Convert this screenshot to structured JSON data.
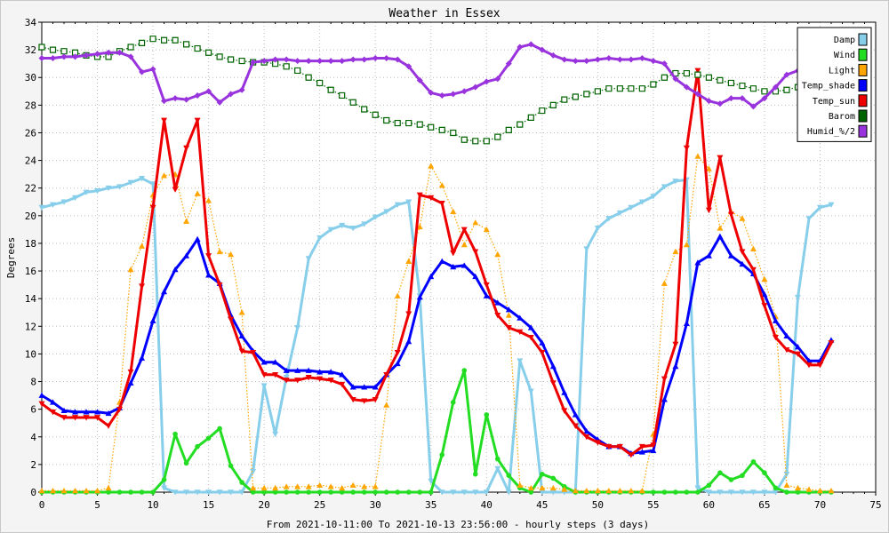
{
  "chart_data": {
    "type": "line",
    "title": "Weather in Essex",
    "xlabel": "From 2021-10-11:00 To 2021-10-13 23:56:00 - hourly steps (3 days)",
    "ylabel": "Degrees",
    "xlim": [
      0,
      75
    ],
    "ylim": [
      0,
      34
    ],
    "xticks": [
      "0",
      "5",
      "10",
      "15",
      "20",
      "25",
      "30",
      "35",
      "40",
      "45",
      "50",
      "55",
      "60",
      "65",
      "70",
      "75"
    ],
    "yticks": [
      "0",
      "2",
      "4",
      "6",
      "8",
      "10",
      "12",
      "14",
      "16",
      "18",
      "20",
      "22",
      "24",
      "26",
      "28",
      "30",
      "32",
      "34"
    ],
    "grid": true,
    "legend_position": "top-right",
    "series": [
      {
        "name": "Damp",
        "color": "#87ceeb",
        "marker": "triangle-down",
        "values": [
          20.6,
          20.8,
          21.0,
          21.3,
          21.7,
          21.8,
          22.0,
          22.1,
          22.4,
          22.7,
          22.3,
          0.3,
          0.0,
          0.0,
          0.0,
          0.0,
          0.0,
          0.0,
          0.0,
          1.5,
          7.7,
          4.2,
          8.3,
          11.9,
          16.9,
          18.4,
          19.0,
          19.3,
          19.1,
          19.4,
          19.9,
          20.3,
          20.8,
          21.0,
          14.2,
          0.8,
          0.0,
          0.0,
          0.0,
          0.0,
          0.0,
          1.7,
          0.0,
          9.5,
          7.3,
          0.0,
          0.0,
          0.0,
          0.0,
          17.6,
          19.1,
          19.8,
          20.2,
          20.6,
          21.0,
          21.4,
          22.1,
          22.5,
          22.6,
          0.3,
          0.0,
          0.0,
          0.0,
          0.0,
          0.0,
          0.0,
          0.0,
          1.3,
          14.1,
          19.8,
          20.6,
          20.8
        ]
      },
      {
        "name": "Wind",
        "color": "#22dd22",
        "marker": "circle",
        "values": [
          0,
          0,
          0,
          0,
          0,
          0,
          0,
          0,
          0,
          0,
          0,
          0.9,
          4.2,
          2.1,
          3.3,
          3.9,
          4.6,
          1.9,
          0.7,
          0,
          0,
          0,
          0,
          0,
          0,
          0,
          0,
          0,
          0,
          0,
          0,
          0,
          0,
          0,
          0,
          0,
          2.7,
          6.5,
          8.8,
          1.3,
          5.6,
          2.4,
          1.2,
          0.3,
          0,
          1.3,
          1.0,
          0.4,
          0,
          0,
          0,
          0,
          0,
          0,
          0,
          0,
          0,
          0,
          0,
          0,
          0.5,
          1.4,
          0.9,
          1.2,
          2.2,
          1.4,
          0.3,
          0,
          0,
          0,
          0,
          0
        ]
      },
      {
        "name": "Light",
        "color": "#ffa500",
        "marker": "triangle-up",
        "dotted": true,
        "values": [
          0.1,
          0.1,
          0.1,
          0.1,
          0.1,
          0.1,
          0.3,
          6.5,
          16.1,
          17.8,
          21.5,
          22.9,
          23.0,
          19.6,
          21.6,
          21.1,
          17.4,
          17.2,
          13.0,
          0.3,
          0.3,
          0.3,
          0.4,
          0.4,
          0.4,
          0.5,
          0.4,
          0.3,
          0.5,
          0.4,
          0.4,
          6.3,
          14.2,
          16.7,
          19.2,
          23.6,
          22.2,
          20.3,
          17.9,
          19.5,
          19.0,
          17.2,
          12.8,
          0.5,
          0.3,
          0.3,
          0.3,
          0.2,
          0.1,
          0.1,
          0.1,
          0.1,
          0.1,
          0.1,
          0.1,
          4.2,
          15.1,
          17.4,
          17.9,
          24.3,
          23.4,
          19.1,
          20.3,
          19.8,
          17.6,
          15.4,
          12.7,
          0.5,
          0.3,
          0.2,
          0.1,
          0.1
        ]
      },
      {
        "name": "Temp_shade",
        "color": "#0000ff",
        "marker": "triangle-up",
        "values": [
          7.0,
          6.5,
          5.9,
          5.8,
          5.8,
          5.8,
          5.7,
          6.1,
          7.9,
          9.7,
          12.4,
          14.5,
          16.1,
          17.1,
          18.3,
          15.7,
          15.1,
          12.8,
          11.3,
          10.2,
          9.4,
          9.4,
          8.8,
          8.8,
          8.8,
          8.7,
          8.7,
          8.5,
          7.6,
          7.6,
          7.6,
          8.5,
          9.3,
          10.9,
          14.1,
          15.6,
          16.7,
          16.3,
          16.4,
          15.6,
          14.2,
          13.7,
          13.2,
          12.6,
          11.9,
          10.8,
          9.1,
          7.2,
          5.6,
          4.4,
          3.8,
          3.3,
          3.3,
          2.8,
          2.9,
          3.0,
          6.7,
          9.1,
          12.2,
          16.6,
          17.1,
          18.5,
          17.1,
          16.5,
          15.8,
          14.3,
          12.4,
          11.3,
          10.5,
          9.5,
          9.5,
          11.0
        ]
      },
      {
        "name": "Temp_sun",
        "color": "#ee0000",
        "marker": "triangle-down",
        "values": [
          6.4,
          5.8,
          5.4,
          5.4,
          5.4,
          5.4,
          4.8,
          6.0,
          8.7,
          14.9,
          20.6,
          26.9,
          21.9,
          24.9,
          26.9,
          17.1,
          15.0,
          12.5,
          10.2,
          10.1,
          8.5,
          8.5,
          8.1,
          8.1,
          8.3,
          8.2,
          8.1,
          7.8,
          6.7,
          6.6,
          6.7,
          8.5,
          10.1,
          12.9,
          21.5,
          21.3,
          20.9,
          17.3,
          19.0,
          17.4,
          15.0,
          12.8,
          11.9,
          11.6,
          11.2,
          10.1,
          7.9,
          5.9,
          4.8,
          4.0,
          3.6,
          3.3,
          3.3,
          2.7,
          3.3,
          3.4,
          8.2,
          10.7,
          24.9,
          30.5,
          20.4,
          24.2,
          20.1,
          17.4,
          16.1,
          13.5,
          11.2,
          10.3,
          10.0,
          9.2,
          9.2,
          10.8
        ]
      },
      {
        "name": "Barom",
        "color": "#006400",
        "marker": "square",
        "dotted": true,
        "values": [
          32.2,
          32.0,
          31.9,
          31.8,
          31.6,
          31.5,
          31.5,
          31.9,
          32.2,
          32.5,
          32.8,
          32.7,
          32.7,
          32.4,
          32.1,
          31.8,
          31.5,
          31.3,
          31.2,
          31.1,
          31.1,
          31.0,
          30.8,
          30.5,
          30.0,
          29.6,
          29.1,
          28.7,
          28.2,
          27.7,
          27.3,
          26.9,
          26.7,
          26.7,
          26.6,
          26.4,
          26.2,
          26.0,
          25.5,
          25.4,
          25.4,
          25.7,
          26.2,
          26.6,
          27.1,
          27.6,
          28.0,
          28.4,
          28.6,
          28.8,
          29.0,
          29.2,
          29.2,
          29.2,
          29.2,
          29.5,
          30.0,
          30.3,
          30.3,
          30.2,
          30.0,
          29.8,
          29.6,
          29.4,
          29.2,
          29.0,
          29.0,
          29.1,
          29.3,
          29.5,
          29.6,
          29.8
        ]
      },
      {
        "name": "Humid_%/2",
        "color": "#9933dd",
        "marker": "diamond",
        "values": [
          31.4,
          31.4,
          31.5,
          31.5,
          31.6,
          31.7,
          31.8,
          31.8,
          31.5,
          30.4,
          30.6,
          28.3,
          28.5,
          28.4,
          28.7,
          29.0,
          28.2,
          28.8,
          29.1,
          31.1,
          31.2,
          31.3,
          31.3,
          31.2,
          31.2,
          31.2,
          31.2,
          31.2,
          31.3,
          31.3,
          31.4,
          31.4,
          31.3,
          30.8,
          29.8,
          28.9,
          28.7,
          28.8,
          29.0,
          29.3,
          29.7,
          29.9,
          31.0,
          32.2,
          32.4,
          32.0,
          31.6,
          31.3,
          31.2,
          31.2,
          31.3,
          31.4,
          31.3,
          31.3,
          31.4,
          31.2,
          31.0,
          29.9,
          29.3,
          28.8,
          28.3,
          28.1,
          28.5,
          28.5,
          27.9,
          28.5,
          29.3,
          30.2,
          30.5,
          30.5,
          30.5,
          30.5
        ]
      }
    ]
  }
}
